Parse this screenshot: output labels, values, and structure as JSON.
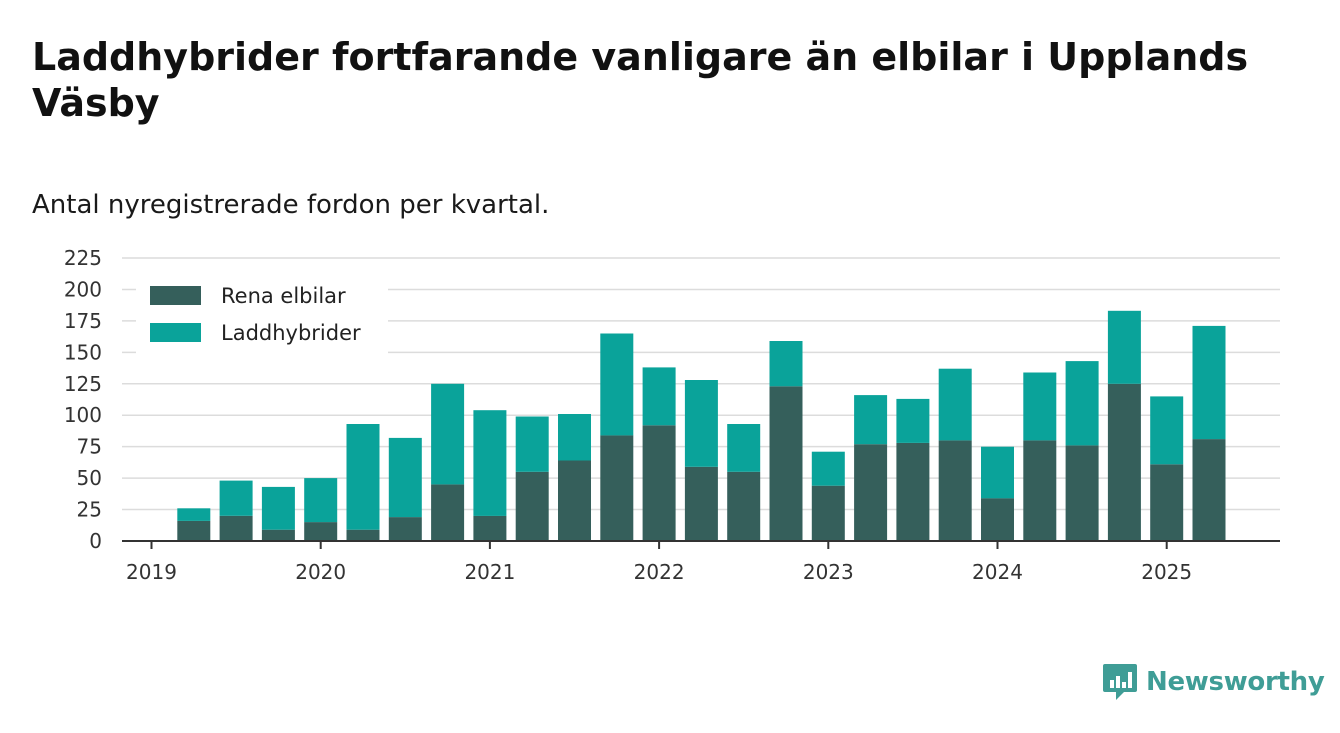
{
  "title": "Laddhybrider fortfarande vanligare än elbilar i Upplands Väsby",
  "subtitle": "Antal nyregistrerade fordon per kvartal.",
  "logo_text": "Newsworthy",
  "chart_data": {
    "type": "bar",
    "stacked": true,
    "x_ticks": [
      "2019",
      "2020",
      "2021",
      "2022",
      "2023",
      "2024",
      "2025"
    ],
    "categories": [
      "2019 Q1",
      "2019 Q2",
      "2019 Q3",
      "2019 Q4",
      "2020 Q1",
      "2020 Q2",
      "2020 Q3",
      "2020 Q4",
      "2021 Q1",
      "2021 Q2",
      "2021 Q3",
      "2021 Q4",
      "2022 Q1",
      "2022 Q2",
      "2022 Q3",
      "2022 Q4",
      "2023 Q1",
      "2023 Q2",
      "2023 Q3",
      "2023 Q4",
      "2024 Q1",
      "2024 Q2",
      "2024 Q3",
      "2024 Q4",
      "2025 Q1",
      "2025 Q2"
    ],
    "series": [
      {
        "name": "Rena elbilar",
        "color": "#355f5b",
        "values": [
          0,
          16,
          20,
          9,
          15,
          9,
          19,
          45,
          20,
          55,
          64,
          84,
          92,
          59,
          55,
          123,
          44,
          77,
          78,
          80,
          34,
          80,
          76,
          125,
          61,
          81
        ]
      },
      {
        "name": "Laddhybrider",
        "color": "#0aa39a",
        "values": [
          0,
          10,
          28,
          34,
          35,
          84,
          63,
          80,
          84,
          44,
          37,
          81,
          46,
          69,
          38,
          36,
          27,
          39,
          35,
          57,
          41,
          54,
          67,
          58,
          54,
          90
        ]
      }
    ],
    "y_ticks": [
      0,
      25,
      50,
      75,
      100,
      125,
      150,
      175,
      200,
      225
    ],
    "ylim": [
      0,
      225
    ],
    "grid": true,
    "legend_position": "top-left"
  }
}
